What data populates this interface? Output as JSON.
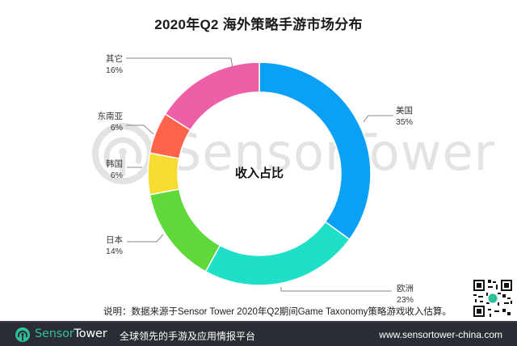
{
  "title": "2020年Q2 海外策略手游市场分布",
  "center_label": "收入占比",
  "watermark": "SensorTower",
  "note": "说明：数据来源于Sensor Tower 2020年Q2期间Game Taxonomy策略游戏收入估算。",
  "labels": {
    "us": {
      "name": "美国",
      "pct": "35%"
    },
    "europe": {
      "name": "欧洲",
      "pct": "23%"
    },
    "japan": {
      "name": "日本",
      "pct": "14%"
    },
    "korea": {
      "name": "韩国",
      "pct": "6%"
    },
    "sea": {
      "name": "东南亚",
      "pct": "6%"
    },
    "other": {
      "name": "其它",
      "pct": "16%"
    }
  },
  "footer": {
    "brand_sensor": "Sensor",
    "brand_tower": "Tower",
    "slogan": "全球领先的手游及应用情报平台",
    "url": "www.sensortower-china.com"
  },
  "colors": {
    "us": "#0aa0f6",
    "europe": "#1ee0c8",
    "japan": "#5fd83a",
    "korea": "#f7dc33",
    "sea": "#fc6348",
    "other": "#ee5fa8",
    "footer_bg": "#2a2d33",
    "brand_green": "#2fbf9a"
  },
  "chart_data": {
    "type": "pie",
    "subtype": "donut",
    "title": "2020年Q2 海外策略手游市场分布",
    "center_text": "收入占比",
    "categories": [
      "美国",
      "欧洲",
      "日本",
      "韩国",
      "东南亚",
      "其它"
    ],
    "values": [
      35,
      23,
      14,
      6,
      6,
      16
    ],
    "unit": "%",
    "colors": [
      "#0aa0f6",
      "#1ee0c8",
      "#5fd83a",
      "#f7dc33",
      "#fc6348",
      "#ee5fa8"
    ],
    "start_angle": "12 o'clock",
    "direction": "clockwise",
    "legend": "none (leader-line labels)",
    "source_note": "说明：数据来源于Sensor Tower 2020年Q2期间Game Taxonomy策略游戏收入估算。"
  }
}
